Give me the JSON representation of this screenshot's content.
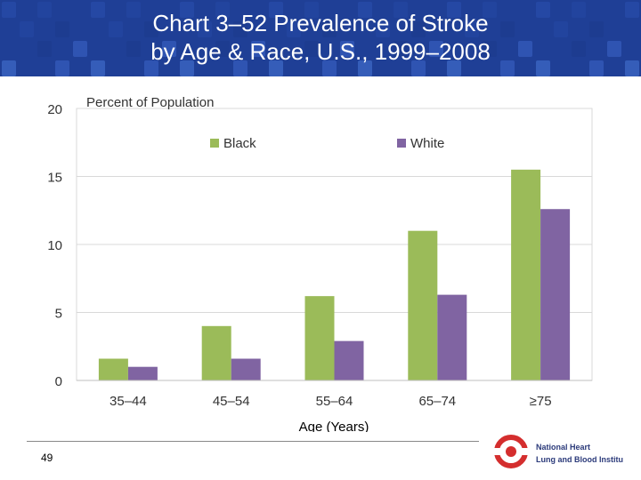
{
  "slide": {
    "title_line1": "Chart 3–52 Prevalence of Stroke",
    "title_line2": "by Age & Race, U.S., 1999–2008",
    "page_number": "49",
    "logo_text_line1": "National Heart",
    "logo_text_line2": "Lung and Blood Institute"
  },
  "colors": {
    "header_bg": "#1f3f96",
    "black_series": "#9bbb59",
    "white_series": "#8064a2",
    "logo_red": "#d42e2e"
  },
  "chart_data": {
    "type": "bar",
    "ylabel": "Percent of Population",
    "xlabel": "Age (Years)",
    "categories": [
      "35–44",
      "45–54",
      "55–64",
      "65–74",
      "≥75"
    ],
    "series": [
      {
        "name": "Black",
        "values": [
          1.6,
          4.0,
          6.2,
          11.0,
          15.5
        ]
      },
      {
        "name": "White",
        "values": [
          1.0,
          1.6,
          2.9,
          6.3,
          12.6
        ]
      }
    ],
    "ylim": [
      0,
      20
    ],
    "yticks": [
      0,
      5,
      10,
      15,
      20
    ],
    "grid": true,
    "legend_position": "top"
  }
}
